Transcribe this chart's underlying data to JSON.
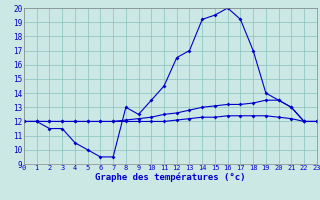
{
  "title": "Graphe des températures (°c)",
  "bg_color": "#cce8e4",
  "line_color": "#0000cc",
  "hours": [
    0,
    1,
    2,
    3,
    4,
    5,
    6,
    7,
    8,
    9,
    10,
    11,
    12,
    13,
    14,
    15,
    16,
    17,
    18,
    19,
    20,
    21,
    22,
    23
  ],
  "temp_actual": [
    12,
    12,
    11.5,
    11.5,
    10.5,
    10.0,
    9.5,
    9.5,
    13.0,
    12.5,
    13.5,
    14.5,
    16.5,
    17.0,
    19.2,
    19.5,
    20.0,
    19.2,
    17.0,
    14.0,
    13.5,
    13.0,
    12.0,
    12.0
  ],
  "temp_line2": [
    12,
    12,
    12,
    12,
    12,
    12,
    12,
    12,
    12,
    12,
    12.0,
    12.0,
    12.1,
    12.2,
    12.3,
    12.3,
    12.4,
    12.4,
    12.4,
    12.4,
    12.3,
    12.2,
    12.0,
    12.0
  ],
  "temp_line3": [
    12,
    12,
    12,
    12,
    12,
    12,
    12,
    12,
    12.1,
    12.2,
    12.3,
    12.5,
    12.6,
    12.8,
    13.0,
    13.1,
    13.2,
    13.2,
    13.3,
    13.5,
    13.5,
    13.0,
    12.0,
    12.0
  ],
  "ylim": [
    9,
    20
  ],
  "yticks": [
    9,
    10,
    11,
    12,
    13,
    14,
    15,
    16,
    17,
    18,
    19,
    20
  ],
  "xlim": [
    0,
    23
  ]
}
